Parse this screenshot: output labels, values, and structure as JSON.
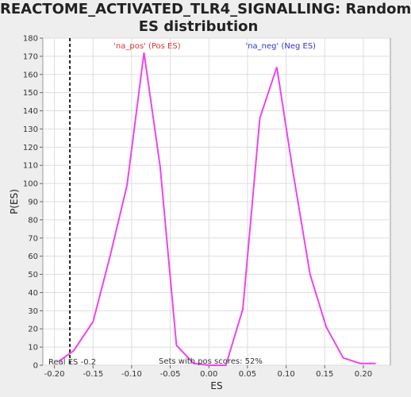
{
  "chart_data": {
    "type": "line",
    "title_line1": "REACTOME_ACTIVATED_TLR4_SIGNALLING: Random",
    "title_line2": "ES distribution",
    "xlabel": "ES",
    "ylabel": "P(ES)",
    "xlim": [
      -0.215,
      0.235
    ],
    "ylim": [
      0,
      180
    ],
    "x_ticks": [
      "-0.20",
      "-0.15",
      "-0.10",
      "-0.05",
      "0.00",
      "0.05",
      "0.10",
      "0.15",
      "0.20"
    ],
    "x_tick_values": [
      -0.2,
      -0.15,
      -0.1,
      -0.05,
      0.0,
      0.05,
      0.1,
      0.15,
      0.2
    ],
    "y_ticks": [
      "0",
      "10",
      "20",
      "30",
      "40",
      "50",
      "60",
      "70",
      "80",
      "90",
      "100",
      "110",
      "120",
      "130",
      "140",
      "150",
      "160",
      "170",
      "180"
    ],
    "y_tick_values": [
      0,
      10,
      20,
      30,
      40,
      50,
      60,
      70,
      80,
      90,
      100,
      110,
      120,
      130,
      140,
      150,
      160,
      170,
      180
    ],
    "grid": true,
    "line_color": "#ee44ee",
    "series": [
      {
        "x": [
          -0.195,
          -0.175,
          -0.15,
          -0.128,
          -0.106,
          -0.084,
          -0.063,
          -0.042,
          -0.02,
          0.0,
          0.022,
          0.044,
          0.066,
          0.088,
          0.109,
          0.131,
          0.152,
          0.174,
          0.196,
          0.216
        ],
        "values": [
          2,
          8,
          24,
          60,
          99,
          172,
          109,
          11,
          1,
          0,
          0,
          31,
          136,
          164,
          106,
          50,
          21,
          4,
          1,
          1
        ]
      }
    ],
    "real_es": -0.18,
    "real_es_color": "#222222",
    "annotations": {
      "pos_label": "'na_pos' (Pos ES)",
      "pos_color": "#dd3333",
      "neg_label": "'na_neg' (Neg ES)",
      "neg_color": "#3333cc",
      "real_es_label": "Real ES -0.2",
      "sets_label": "Sets with pos scores: 52%"
    }
  }
}
